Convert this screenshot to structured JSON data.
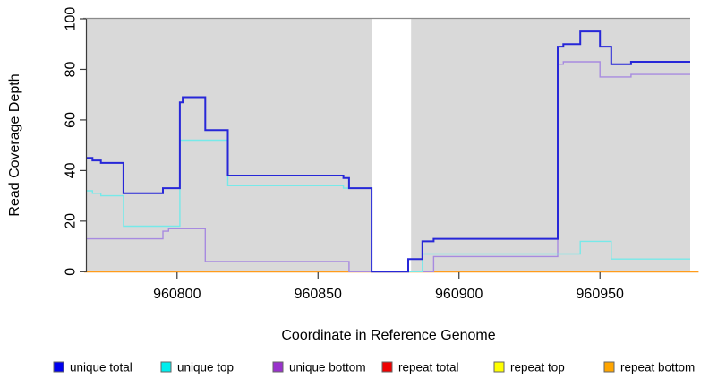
{
  "plot": {
    "bg_color": "#d9d9d9",
    "gap_fill": "#ffffff",
    "top_border_color": "#8b8b8b",
    "axis_color": "#3a3a3a",
    "tick_label_color": "#000000",
    "y_axis": {
      "label": "Read Coverage Depth"
    },
    "x_axis": {
      "label": "Coordinate in Reference Genome"
    }
  },
  "legend": {
    "items": [
      {
        "label": "unique total",
        "swatch": "#0000ee"
      },
      {
        "label": "unique top",
        "swatch": "#00eeee"
      },
      {
        "label": "unique bottom",
        "swatch": "#9932cc"
      },
      {
        "label": "repeat total",
        "swatch": "#ee0000"
      },
      {
        "label": "repeat top",
        "swatch": "#ffff00"
      },
      {
        "label": "repeat bottom",
        "swatch": "#ffa500"
      }
    ]
  },
  "chart_data": {
    "type": "line",
    "step": true,
    "title": "",
    "xlabel": "Coordinate in Reference Genome",
    "ylabel": "Read Coverage Depth",
    "xlim": [
      960768,
      960982
    ],
    "ylim": [
      0,
      100
    ],
    "x_ticks": [
      960800,
      960850,
      960900,
      960950
    ],
    "y_ticks": [
      0,
      20,
      40,
      60,
      80,
      100
    ],
    "grid": false,
    "legend_position": "bottom",
    "gap_region": {
      "x_start": 960869,
      "x_end": 960883
    },
    "draw_order": [
      "repeat total",
      "repeat top",
      "repeat bottom",
      "unique bottom",
      "unique top",
      "unique total"
    ],
    "series": [
      {
        "name": "unique total",
        "color": "#2727d8",
        "line_width": 2,
        "points": [
          [
            960768,
            45
          ],
          [
            960770,
            44
          ],
          [
            960773,
            43
          ],
          [
            960781,
            31
          ],
          [
            960795,
            33
          ],
          [
            960801,
            67
          ],
          [
            960802,
            69
          ],
          [
            960810,
            56
          ],
          [
            960818,
            38
          ],
          [
            960859,
            37
          ],
          [
            960861,
            33
          ],
          [
            960869,
            0
          ],
          [
            960882,
            5
          ],
          [
            960887,
            12
          ],
          [
            960891,
            13
          ],
          [
            960935,
            89
          ],
          [
            960937,
            90
          ],
          [
            960943,
            95
          ],
          [
            960950,
            89
          ],
          [
            960954,
            82
          ],
          [
            960961,
            83
          ]
        ]
      },
      {
        "name": "unique top",
        "color": "#76e9e9",
        "line_width": 1.4,
        "points": [
          [
            960768,
            32
          ],
          [
            960770,
            31
          ],
          [
            960773,
            30
          ],
          [
            960781,
            18
          ],
          [
            960801,
            52
          ],
          [
            960818,
            34
          ],
          [
            960859,
            33
          ],
          [
            960869,
            0
          ],
          [
            960887,
            7
          ],
          [
            960943,
            12
          ],
          [
            960954,
            5
          ]
        ]
      },
      {
        "name": "unique bottom",
        "color": "#a78ae0",
        "line_width": 1.4,
        "points": [
          [
            960768,
            13
          ],
          [
            960795,
            16
          ],
          [
            960797,
            17
          ],
          [
            960810,
            4
          ],
          [
            960861,
            0
          ],
          [
            960891,
            6
          ],
          [
            960935,
            82
          ],
          [
            960937,
            83
          ],
          [
            960950,
            77
          ],
          [
            960961,
            78
          ]
        ]
      },
      {
        "name": "repeat total",
        "color": "#cc0000",
        "line_width": 1.4,
        "points": [
          [
            960768,
            0
          ]
        ]
      },
      {
        "name": "repeat top",
        "color": "#f0f000",
        "line_width": 1.4,
        "points": [
          [
            960768,
            0
          ]
        ]
      },
      {
        "name": "repeat bottom",
        "color": "#ff9c1c",
        "line_width": 2,
        "x_start": 960767,
        "x_end": 960985,
        "points": [
          [
            960767,
            0
          ]
        ]
      }
    ]
  }
}
